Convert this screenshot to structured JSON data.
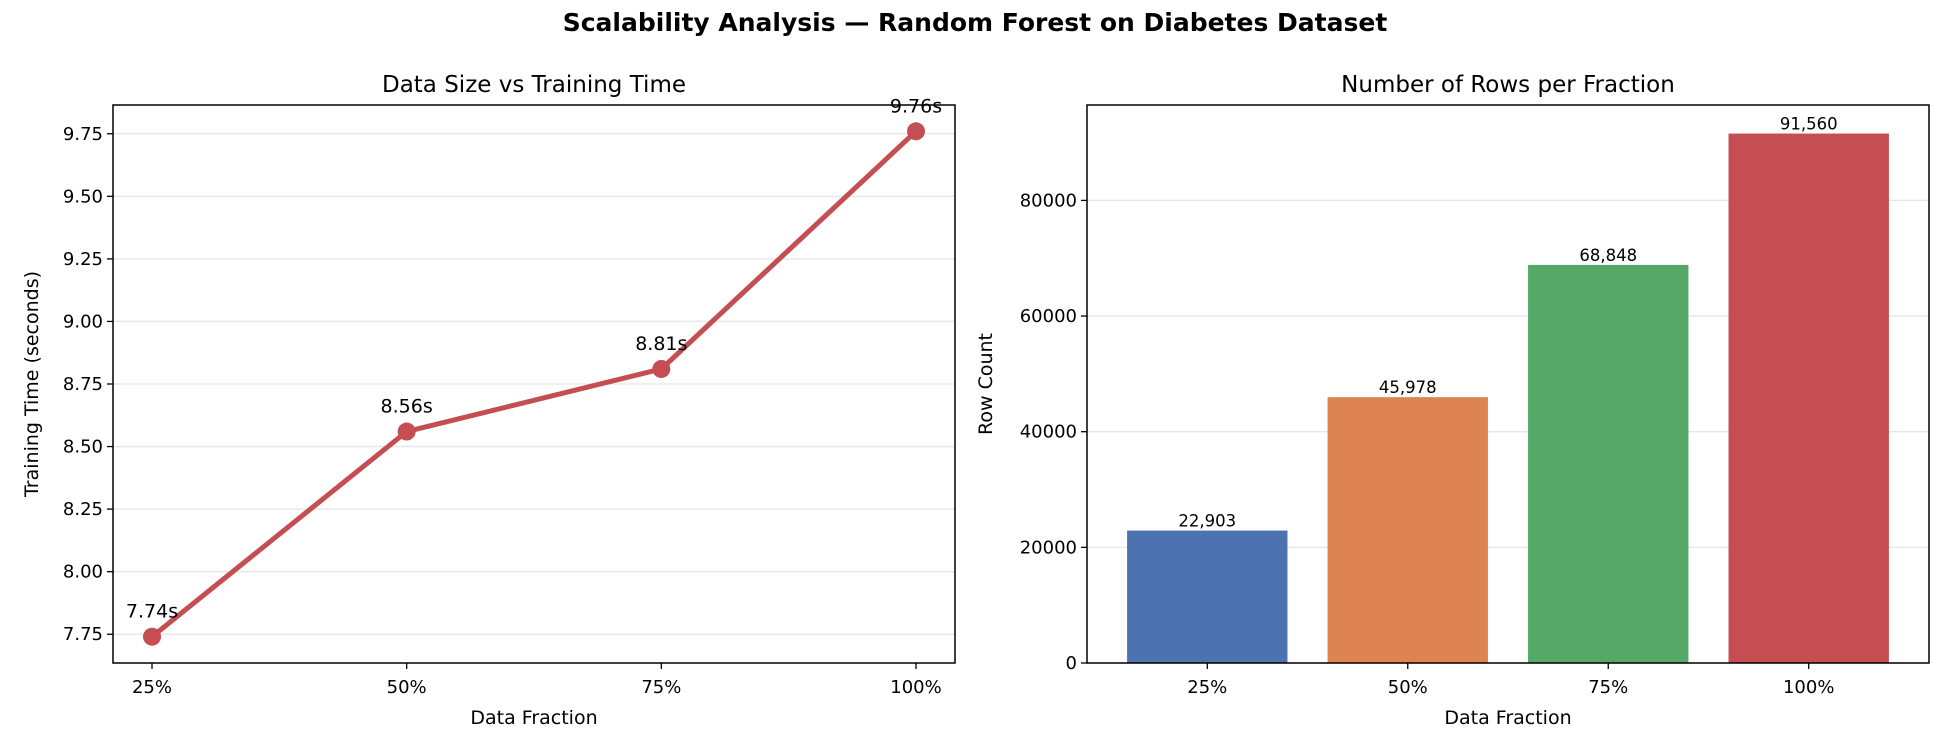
{
  "figure": {
    "title": "Scalability Analysis — Random Forest on Diabetes Dataset"
  },
  "chart_data": [
    {
      "type": "line",
      "title": "Data Size vs Training Time",
      "xlabel": "Data Fraction",
      "ylabel": "Training Time (seconds)",
      "categories": [
        "25%",
        "50%",
        "75%",
        "100%"
      ],
      "series": [
        {
          "values": [
            7.74,
            8.56,
            8.81,
            9.76
          ],
          "color": "#C44E52"
        }
      ],
      "point_labels": [
        "7.74s",
        "8.56s",
        "8.81s",
        "9.76s"
      ],
      "yticks": [
        7.75,
        8.0,
        8.25,
        8.5,
        8.75,
        9.0,
        9.25,
        9.5,
        9.75
      ],
      "ytick_labels": [
        "7.75",
        "8.00",
        "8.25",
        "8.50",
        "8.75",
        "9.00",
        "9.25",
        "9.50",
        "9.75"
      ],
      "ylim": [
        7.635,
        9.865
      ],
      "grid": "horizontal"
    },
    {
      "type": "bar",
      "title": "Number of Rows per Fraction",
      "xlabel": "Data Fraction",
      "ylabel": "Row Count",
      "categories": [
        "25%",
        "50%",
        "75%",
        "100%"
      ],
      "values": [
        22903,
        45978,
        68848,
        91560
      ],
      "value_labels": [
        "22,903",
        "45,978",
        "68,848",
        "91,560"
      ],
      "colors": [
        "#4C72B0",
        "#DD8452",
        "#55A868",
        "#C44E52"
      ],
      "yticks": [
        0,
        20000,
        40000,
        60000,
        80000
      ],
      "ytick_labels": [
        "0",
        "20000",
        "40000",
        "60000",
        "80000"
      ],
      "ylim": [
        0,
        96500
      ],
      "grid": "horizontal"
    }
  ]
}
